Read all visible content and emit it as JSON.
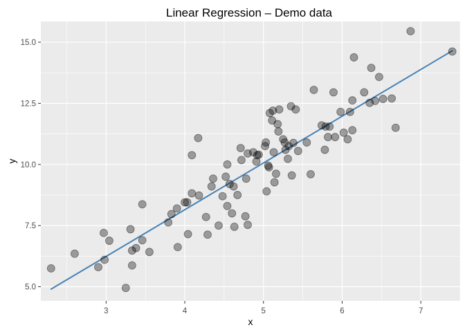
{
  "chart_data": {
    "type": "scatter",
    "title": "Linear Regression – Demo data",
    "xlabel": "x",
    "ylabel": "y",
    "xlim": [
      2.17,
      7.5
    ],
    "ylim": [
      4.42,
      15.85
    ],
    "xticks": [
      3,
      4,
      5,
      6,
      7
    ],
    "xtick_labels": [
      "3",
      "4",
      "5",
      "6",
      "7"
    ],
    "yticks": [
      5.0,
      7.5,
      10.0,
      12.5,
      15.0
    ],
    "ytick_labels": [
      "5.0",
      "7.5",
      "10.0",
      "12.5",
      "15.0"
    ],
    "grid": true,
    "legend": "none",
    "colors": {
      "panel_background": "#ebebeb",
      "grid_major": "#ffffff",
      "point_fill": "#000000",
      "point_opacity": 0.35,
      "line": "#4682b4"
    },
    "regression_line": {
      "x": [
        2.3,
        7.4
      ],
      "y": [
        4.9,
        14.65
      ]
    },
    "points": [
      [
        2.3,
        5.75
      ],
      [
        2.6,
        6.35
      ],
      [
        2.9,
        5.8
      ],
      [
        2.97,
        7.2
      ],
      [
        2.98,
        6.1
      ],
      [
        3.04,
        6.88
      ],
      [
        3.25,
        4.95
      ],
      [
        3.31,
        7.35
      ],
      [
        3.33,
        6.48
      ],
      [
        3.33,
        5.87
      ],
      [
        3.38,
        6.58
      ],
      [
        3.46,
        6.9
      ],
      [
        3.46,
        8.37
      ],
      [
        3.55,
        6.42
      ],
      [
        3.79,
        7.63
      ],
      [
        3.83,
        7.97
      ],
      [
        3.9,
        8.2
      ],
      [
        3.91,
        6.62
      ],
      [
        4.0,
        8.45
      ],
      [
        4.03,
        8.45
      ],
      [
        4.04,
        7.15
      ],
      [
        4.09,
        8.82
      ],
      [
        4.09,
        10.38
      ],
      [
        4.17,
        11.08
      ],
      [
        4.18,
        8.73
      ],
      [
        4.27,
        7.85
      ],
      [
        4.29,
        7.13
      ],
      [
        4.34,
        9.1
      ],
      [
        4.36,
        9.42
      ],
      [
        4.43,
        7.5
      ],
      [
        4.48,
        8.7
      ],
      [
        4.52,
        9.5
      ],
      [
        4.54,
        8.3
      ],
      [
        4.54,
        10.0
      ],
      [
        4.57,
        9.2
      ],
      [
        4.6,
        8.0
      ],
      [
        4.62,
        9.1
      ],
      [
        4.63,
        7.45
      ],
      [
        4.67,
        8.75
      ],
      [
        4.71,
        10.67
      ],
      [
        4.72,
        10.18
      ],
      [
        4.77,
        7.88
      ],
      [
        4.78,
        9.42
      ],
      [
        4.8,
        10.45
      ],
      [
        4.8,
        7.53
      ],
      [
        4.87,
        10.5
      ],
      [
        4.91,
        10.12
      ],
      [
        4.92,
        10.38
      ],
      [
        4.94,
        10.4
      ],
      [
        5.02,
        10.75
      ],
      [
        5.03,
        10.9
      ],
      [
        5.04,
        8.9
      ],
      [
        5.06,
        9.95
      ],
      [
        5.07,
        9.88
      ],
      [
        5.08,
        12.1
      ],
      [
        5.11,
        11.8
      ],
      [
        5.12,
        12.2
      ],
      [
        5.13,
        10.5
      ],
      [
        5.14,
        9.27
      ],
      [
        5.16,
        9.62
      ],
      [
        5.18,
        11.65
      ],
      [
        5.19,
        11.35
      ],
      [
        5.2,
        12.25
      ],
      [
        5.25,
        11.03
      ],
      [
        5.27,
        10.9
      ],
      [
        5.28,
        10.6
      ],
      [
        5.31,
        10.23
      ],
      [
        5.32,
        10.75
      ],
      [
        5.35,
        12.38
      ],
      [
        5.36,
        9.55
      ],
      [
        5.38,
        10.88
      ],
      [
        5.41,
        12.25
      ],
      [
        5.44,
        10.55
      ],
      [
        5.55,
        10.9
      ],
      [
        5.6,
        9.6
      ],
      [
        5.64,
        13.05
      ],
      [
        5.74,
        11.6
      ],
      [
        5.78,
        10.6
      ],
      [
        5.79,
        11.55
      ],
      [
        5.82,
        11.12
      ],
      [
        5.84,
        11.55
      ],
      [
        5.89,
        12.95
      ],
      [
        5.91,
        11.12
      ],
      [
        5.98,
        12.15
      ],
      [
        6.02,
        11.3
      ],
      [
        6.07,
        11.03
      ],
      [
        6.1,
        12.15
      ],
      [
        6.13,
        11.4
      ],
      [
        6.13,
        12.62
      ],
      [
        6.15,
        14.38
      ],
      [
        6.28,
        12.95
      ],
      [
        6.35,
        12.52
      ],
      [
        6.37,
        13.95
      ],
      [
        6.42,
        12.6
      ],
      [
        6.47,
        13.58
      ],
      [
        6.52,
        12.68
      ],
      [
        6.63,
        12.7
      ],
      [
        6.68,
        11.5
      ],
      [
        6.87,
        15.45
      ],
      [
        7.4,
        14.62
      ]
    ]
  }
}
